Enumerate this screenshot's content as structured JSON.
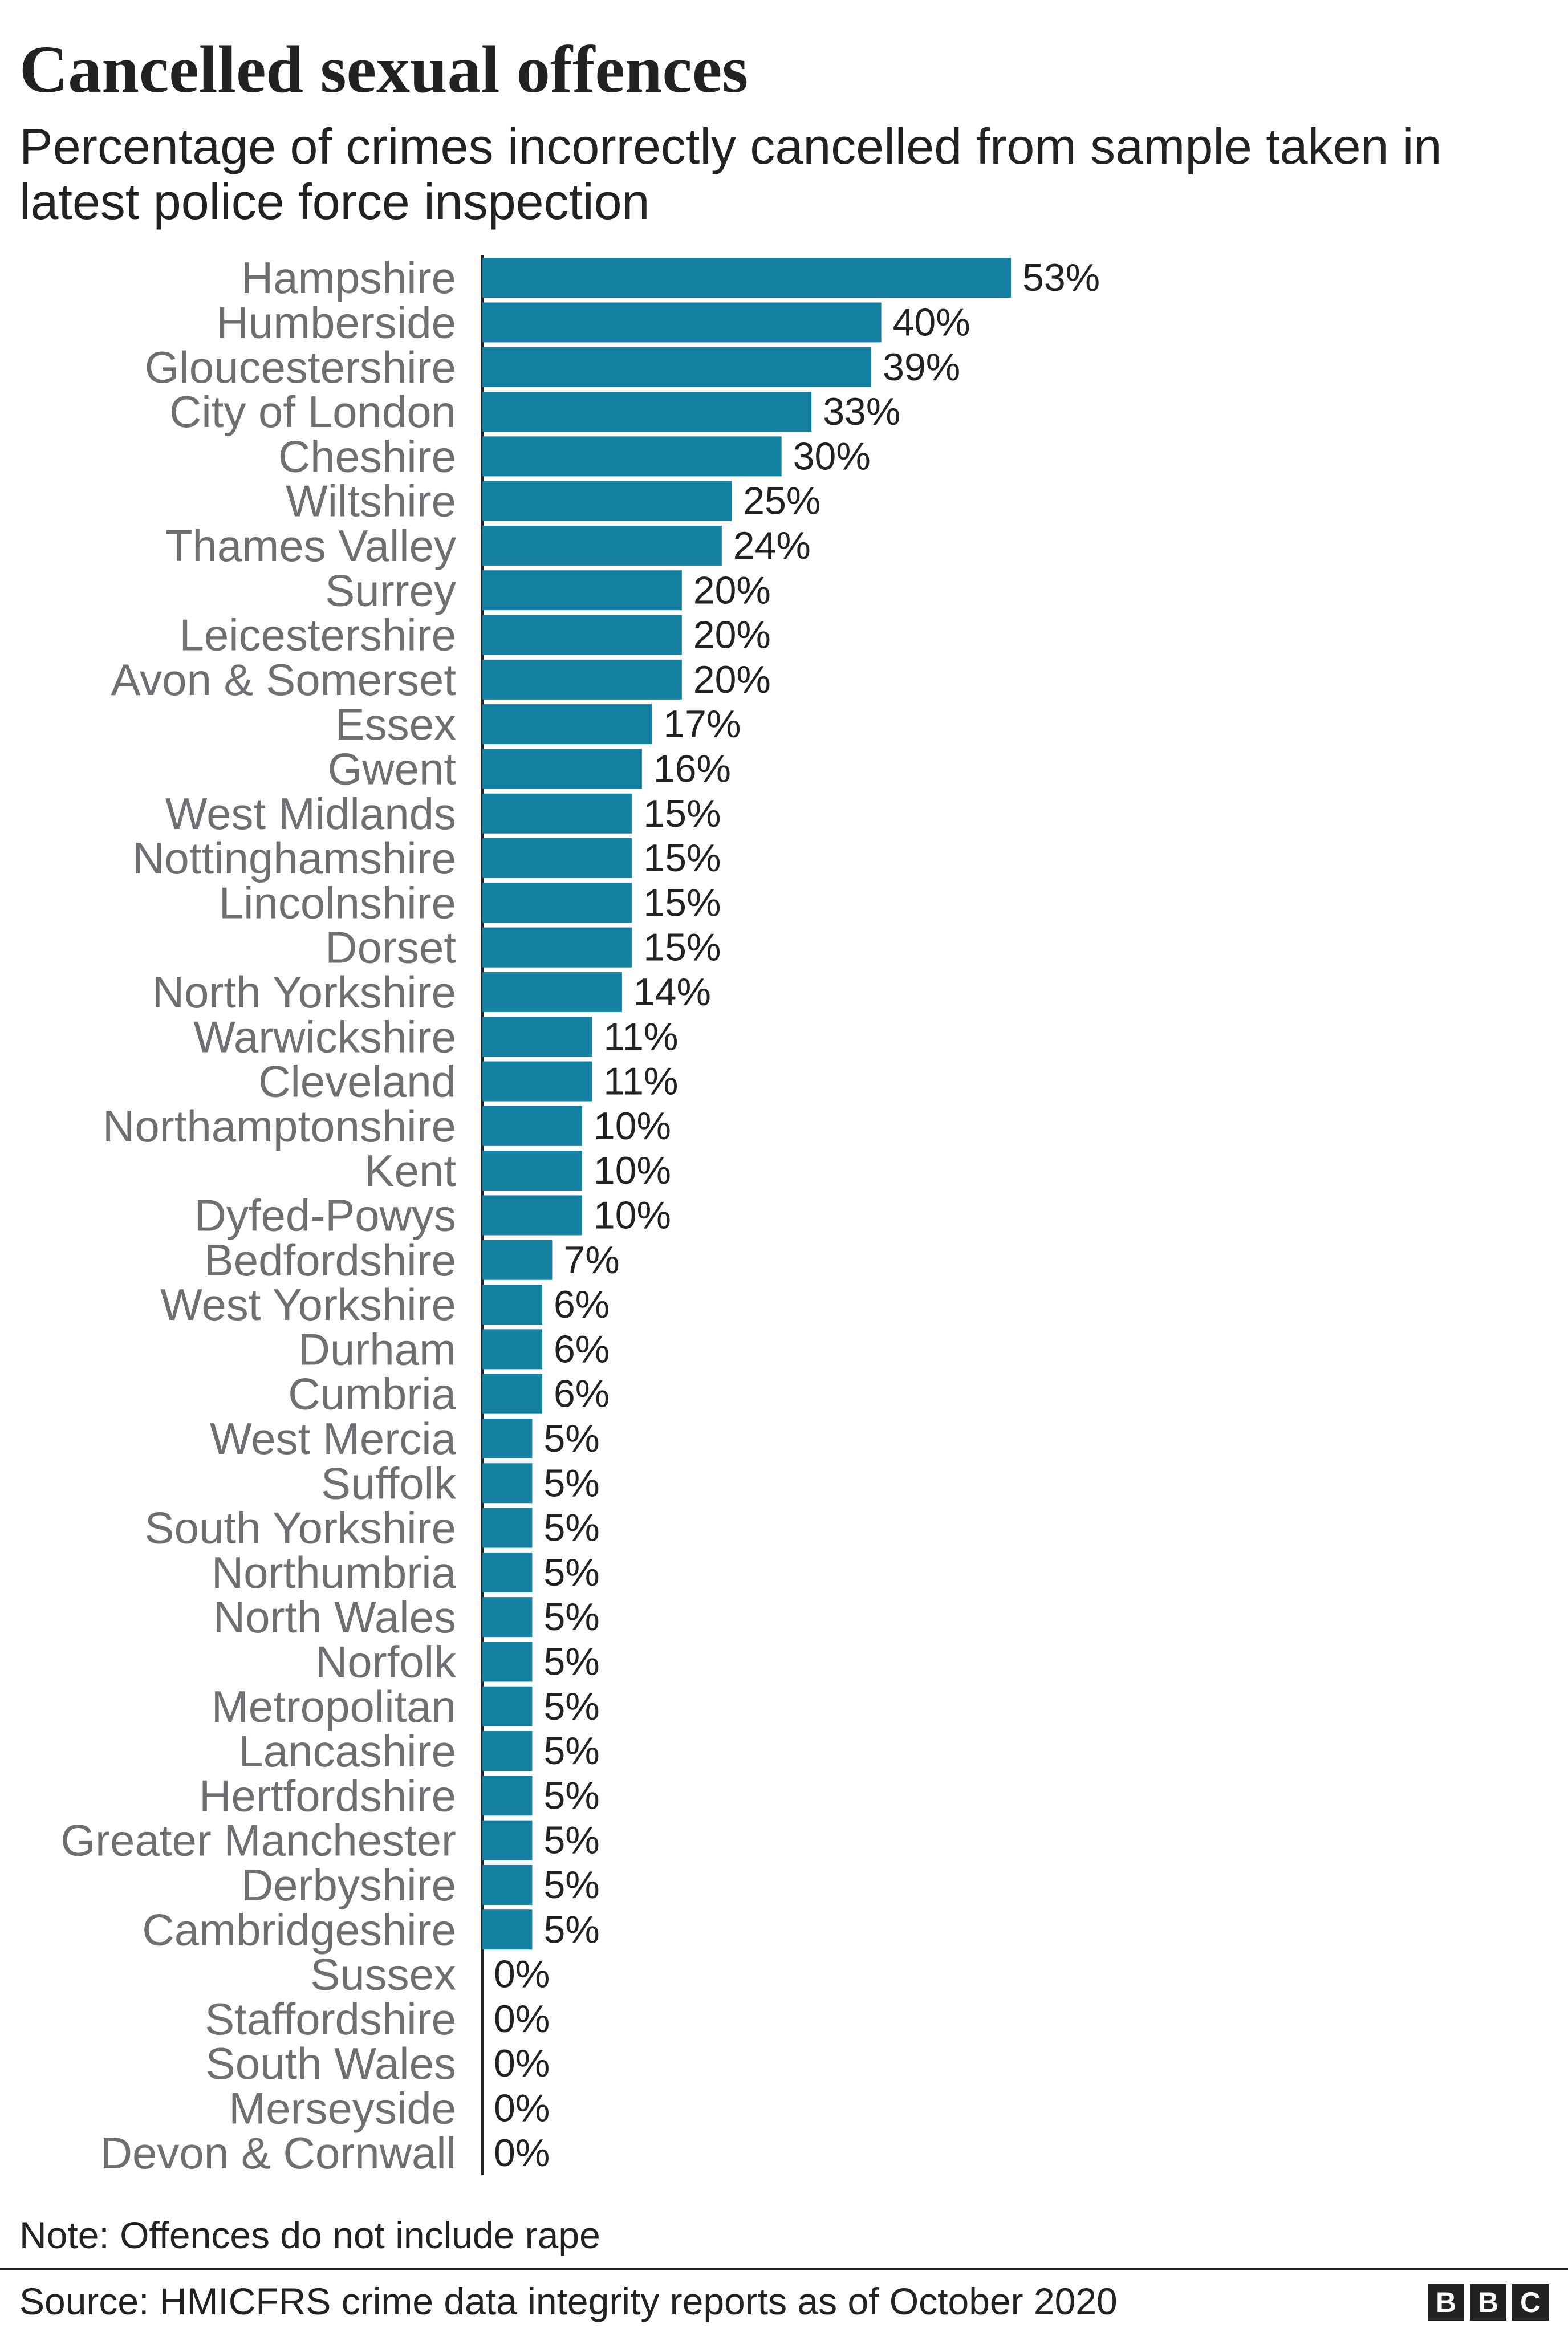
{
  "header": {
    "title": "Cancelled sexual offences",
    "subtitle": "Percentage of crimes incorrectly cancelled from sample taken in latest police force inspection"
  },
  "footer": {
    "note": "Note: Offences do not include rape",
    "source": "Source: HMICFRS crime data integrity reports as of October 2020",
    "logo_letters": [
      "B",
      "B",
      "C"
    ]
  },
  "colors": {
    "bar": "#1380A1",
    "label": "#6e6e73",
    "value": "#222222",
    "axis": "#222222"
  },
  "chart_data": {
    "type": "bar",
    "orientation": "horizontal",
    "title": "Cancelled sexual offences",
    "subtitle": "Percentage of crimes incorrectly cancelled from sample taken in latest police force inspection",
    "value_suffix": "%",
    "xlim": [
      0,
      53
    ],
    "grid": false,
    "categories": [
      "Hampshire",
      "Humberside",
      "Gloucestershire",
      "City of London",
      "Cheshire",
      "Wiltshire",
      "Thames Valley",
      "Surrey",
      "Leicestershire",
      "Avon & Somerset",
      "Essex",
      "Gwent",
      "West Midlands",
      "Nottinghamshire",
      "Lincolnshire",
      "Dorset",
      "North Yorkshire",
      "Warwickshire",
      "Cleveland",
      "Northamptonshire",
      "Kent",
      "Dyfed-Powys",
      "Bedfordshire",
      "West Yorkshire",
      "Durham",
      "Cumbria",
      "West Mercia",
      "Suffolk",
      "South Yorkshire",
      "Northumbria",
      "North Wales",
      "Norfolk",
      "Metropolitan",
      "Lancashire",
      "Hertfordshire",
      "Greater Manchester",
      "Derbyshire",
      "Cambridgeshire",
      "Sussex",
      "Staffordshire",
      "South Wales",
      "Merseyside",
      "Devon & Cornwall"
    ],
    "values": [
      53,
      40,
      39,
      33,
      30,
      25,
      24,
      20,
      20,
      20,
      17,
      16,
      15,
      15,
      15,
      15,
      14,
      11,
      11,
      10,
      10,
      10,
      7,
      6,
      6,
      6,
      5,
      5,
      5,
      5,
      5,
      5,
      5,
      5,
      5,
      5,
      5,
      5,
      0,
      0,
      0,
      0,
      0
    ]
  }
}
